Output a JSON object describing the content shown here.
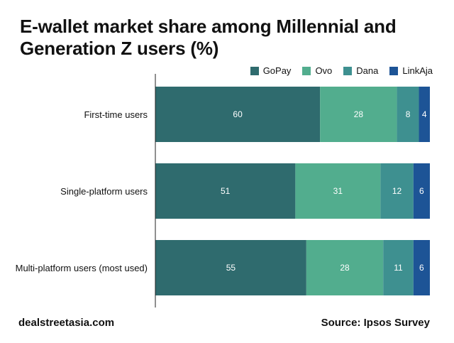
{
  "title_lines": [
    "E-wallet market share among Millennial and",
    "Generation Z users (%)"
  ],
  "footer": {
    "brand": "dealstreetasia.com",
    "source": "Source: Ipsos Survey"
  },
  "chart_data": {
    "type": "bar",
    "orientation": "horizontal",
    "stacked": true,
    "title": "E-wallet market share among Millennial and Generation Z users (%)",
    "xlim": [
      0,
      100
    ],
    "categories": [
      "First-time users",
      "Single-platform users",
      "Multi-platform users (most used)"
    ],
    "series": [
      {
        "name": "GoPay",
        "color": "#2f6b6e",
        "values": [
          60,
          51,
          55
        ]
      },
      {
        "name": "Ovo",
        "color": "#52ad8e",
        "values": [
          28,
          31,
          28
        ]
      },
      {
        "name": "Dana",
        "color": "#3e9090",
        "values": [
          8,
          12,
          11
        ]
      },
      {
        "name": "LinkAja",
        "color": "#1d5496",
        "values": [
          4,
          6,
          6
        ]
      }
    ],
    "legend_position": "top-right"
  }
}
